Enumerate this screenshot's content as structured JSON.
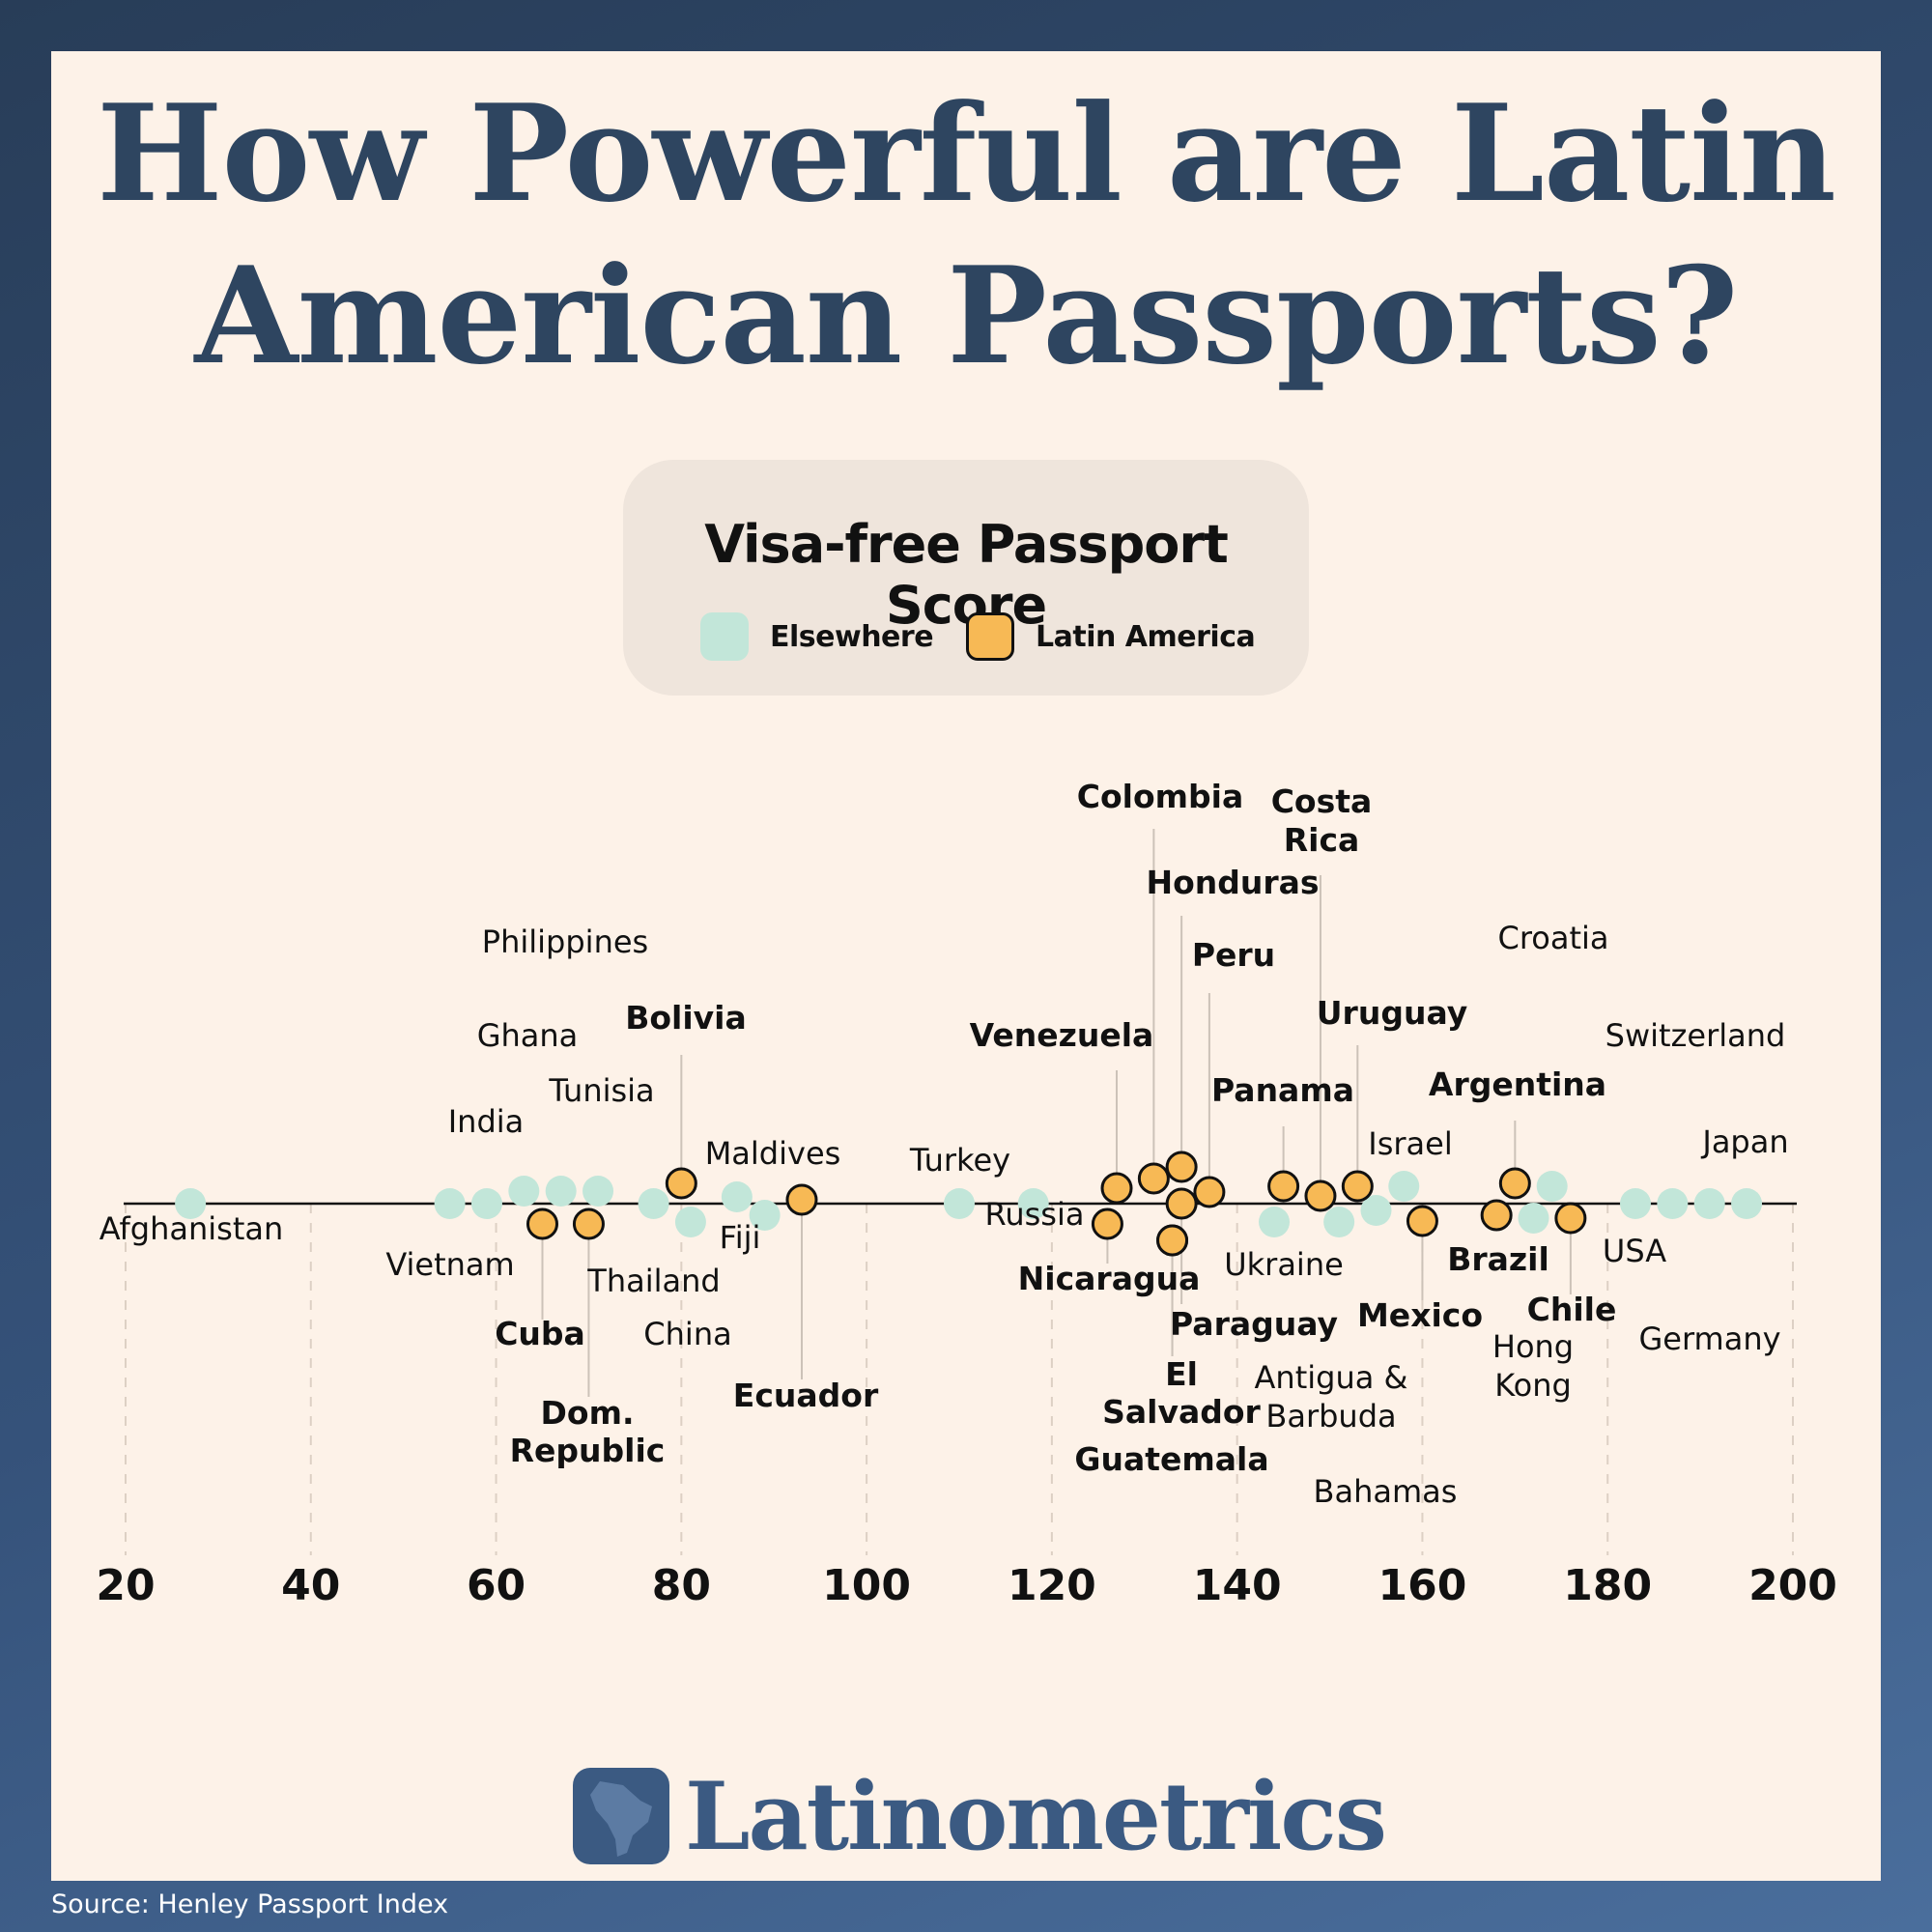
{
  "title": "How Powerful are Latin American Passports?",
  "legend": {
    "title": "Visa-free Passport Score",
    "items": [
      {
        "label": "Elsewhere",
        "color": "#c2e6d9"
      },
      {
        "label": "Latin America",
        "color": "#f7b955"
      }
    ]
  },
  "brand": "Latinometrics",
  "source": "Source: Henley Passport Index",
  "chart_data": {
    "type": "scatter",
    "title": "Visa-free Passport Score",
    "xlim": [
      20,
      200
    ],
    "xticks": [
      20,
      40,
      60,
      80,
      100,
      120,
      140,
      160,
      180,
      200
    ],
    "grid": "vertical dashed",
    "series": [
      {
        "name": "Elsewhere",
        "color": "#c2e6d9",
        "points": [
          {
            "name": "Afghanistan",
            "x": 27
          },
          {
            "name": "India",
            "x": 55
          },
          {
            "name": "Vietnam",
            "x": 59
          },
          {
            "name": "Ghana",
            "x": 63
          },
          {
            "name": "Philippines",
            "x": 67
          },
          {
            "name": "Tunisia",
            "x": 71
          },
          {
            "name": "Thailand",
            "x": 77
          },
          {
            "name": "China",
            "x": 81
          },
          {
            "name": "Maldives",
            "x": 86
          },
          {
            "name": "Fiji",
            "x": 89
          },
          {
            "name": "Turkey",
            "x": 110
          },
          {
            "name": "Russia",
            "x": 118
          },
          {
            "name": "Ukraine",
            "x": 144
          },
          {
            "name": "Antigua & Barbuda",
            "x": 151
          },
          {
            "name": "Bahamas",
            "x": 155
          },
          {
            "name": "Israel",
            "x": 158
          },
          {
            "name": "Hong Kong",
            "x": 172
          },
          {
            "name": "Croatia",
            "x": 174
          },
          {
            "name": "USA",
            "x": 183
          },
          {
            "name": "Switzerland",
            "x": 187
          },
          {
            "name": "Germany",
            "x": 191
          },
          {
            "name": "Japan",
            "x": 195
          }
        ]
      },
      {
        "name": "Latin America",
        "color": "#f7b955",
        "points": [
          {
            "name": "Cuba",
            "x": 65
          },
          {
            "name": "Dom. Republic",
            "x": 70
          },
          {
            "name": "Bolivia",
            "x": 80
          },
          {
            "name": "Ecuador",
            "x": 93
          },
          {
            "name": "Nicaragua",
            "x": 126
          },
          {
            "name": "Venezuela",
            "x": 127
          },
          {
            "name": "Colombia",
            "x": 131
          },
          {
            "name": "El Salvador",
            "x": 133
          },
          {
            "name": "Guatemala",
            "x": 133
          },
          {
            "name": "Honduras",
            "x": 134
          },
          {
            "name": "Paraguay",
            "x": 134
          },
          {
            "name": "Peru",
            "x": 137
          },
          {
            "name": "Panama",
            "x": 145
          },
          {
            "name": "Costa Rica",
            "x": 149
          },
          {
            "name": "Uruguay",
            "x": 153
          },
          {
            "name": "Mexico",
            "x": 160
          },
          {
            "name": "Brazil",
            "x": 168
          },
          {
            "name": "Argentina",
            "x": 170
          },
          {
            "name": "Chile",
            "x": 176
          }
        ]
      }
    ]
  }
}
